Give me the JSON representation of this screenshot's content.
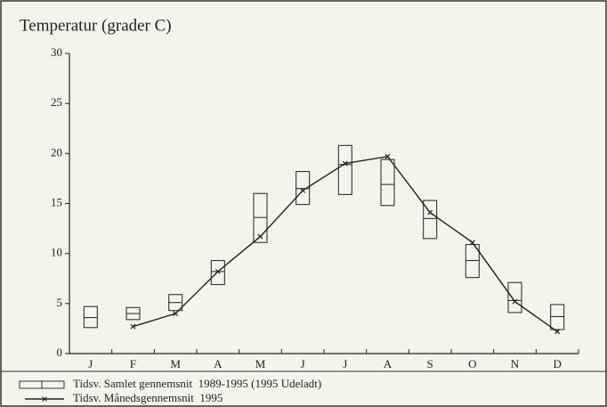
{
  "chart_data": {
    "type": "box-line",
    "title": "Temperatur (grader C)",
    "categories": [
      "J",
      "F",
      "M",
      "A",
      "M",
      "J",
      "J",
      "A",
      "S",
      "O",
      "N",
      "D"
    ],
    "ylim": [
      0,
      30
    ],
    "yticks": [
      0,
      5,
      10,
      15,
      20,
      25,
      30
    ],
    "series": [
      {
        "name": "Tidsv. Samlet gennemsnit  1989-1995 (1995 Udeladt)",
        "type": "box",
        "color": "#333333",
        "low": [
          2.6,
          3.4,
          4.3,
          6.9,
          11.1,
          14.9,
          15.9,
          14.8,
          11.5,
          7.6,
          4.1,
          2.4
        ],
        "values": [
          3.6,
          4.0,
          5.1,
          8.2,
          13.6,
          16.5,
          18.9,
          16.9,
          13.5,
          9.3,
          5.3,
          3.7
        ],
        "high": [
          4.7,
          4.6,
          5.9,
          9.3,
          16.0,
          18.2,
          20.8,
          19.4,
          15.3,
          10.9,
          7.1,
          4.9
        ]
      },
      {
        "name": "Tidsv. Månedsgennemsnit  1995",
        "type": "line",
        "color": "#222222",
        "values": [
          null,
          2.7,
          4.0,
          8.2,
          11.7,
          16.3,
          19.0,
          19.7,
          14.1,
          11.1,
          5.2,
          2.2
        ]
      }
    ]
  }
}
